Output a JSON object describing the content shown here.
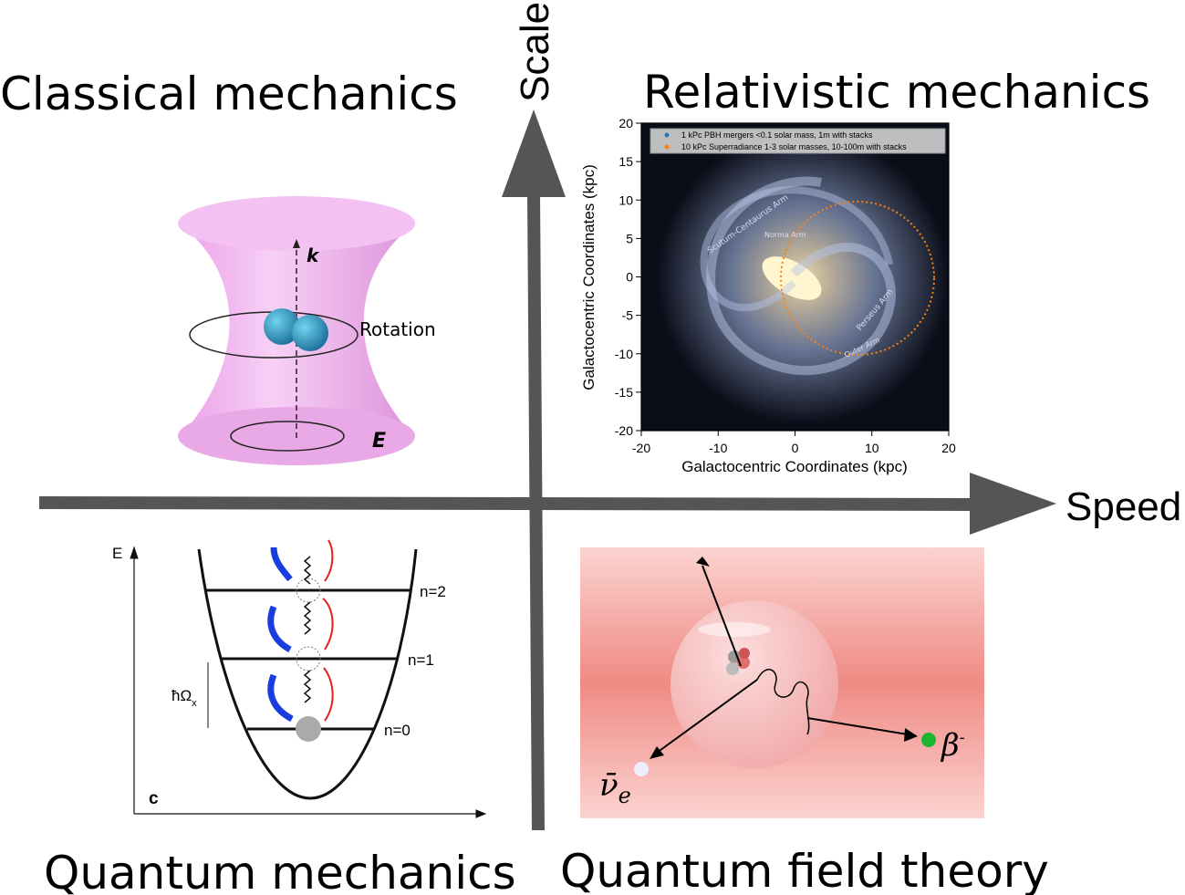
{
  "axes": {
    "vertical": "Scale",
    "horizontal": "Speed"
  },
  "quadrants": {
    "top_left": {
      "title": "Classical mechanics",
      "labels": {
        "axis": "k",
        "rotation": "Rotation",
        "field": "E"
      }
    },
    "top_right": {
      "title": "Relativistic mechanics",
      "plot": {
        "xlabel": "Galactocentric Coordinates (kpc)",
        "ylabel": "Galactocentric Coordinates (kpc)",
        "xlim": [
          -20,
          20
        ],
        "ylim": [
          -20,
          20
        ],
        "xticks": [
          -20,
          -10,
          0,
          10,
          20
        ],
        "yticks": [
          -20,
          -15,
          -10,
          -5,
          0,
          5,
          10,
          15,
          20
        ],
        "legend": [
          {
            "name": "1 kPc PBH mergers <0.1 solar mass, 1m with stacks",
            "color": "#1f77b4"
          },
          {
            "name": "10 kPc Superradiance 1-3 solar masses, 10-100m with stacks",
            "color": "#ff7f0e"
          }
        ],
        "arm_labels": [
          "Scutum-Centaurus Arm",
          "Norma Arm",
          "Perseus Arm",
          "Outer Arm"
        ]
      }
    },
    "bottom_left": {
      "title": "Quantum mechanics",
      "labels": {
        "energy": "E",
        "n2": "n=2",
        "n1": "n=1",
        "n0": "n=0",
        "spacing": "ħΩ",
        "spacing_sub": "x",
        "panel": "c"
      }
    },
    "bottom_right": {
      "title": "Quantum field theory",
      "labels": {
        "beta": "β",
        "beta_sup": "-",
        "neutrino": "ν̄",
        "neutrino_sub": "e"
      }
    }
  }
}
